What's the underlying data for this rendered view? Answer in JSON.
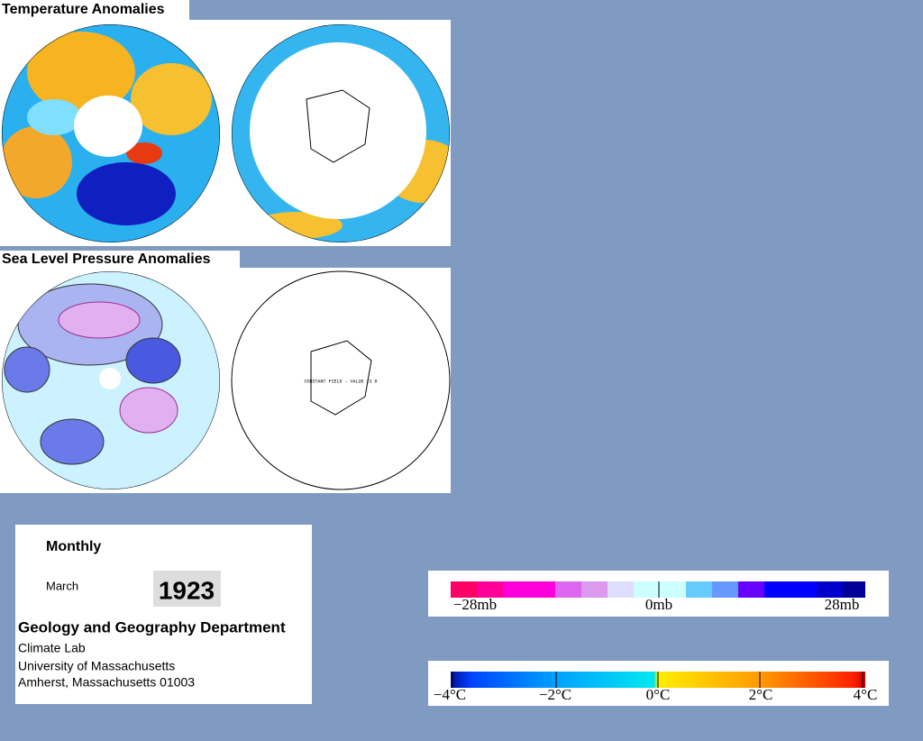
{
  "header": {
    "temperature_title": "Temperature Anomalies",
    "pressure_title": "Sea Level Pressure Anomalies"
  },
  "maps": {
    "constant_field_note": "CONSTANT FIELD - VALUE IS 0"
  },
  "info": {
    "period": "Monthly",
    "month": "March",
    "year": "1923",
    "department": "Geology and Geography Department",
    "lines": [
      "Climate Lab",
      "University of Massachusetts",
      "Amherst, Massachusetts 01003"
    ]
  },
  "pressure_scale": {
    "labels": [
      "−28mb",
      "0mb",
      "28mb"
    ]
  },
  "temperature_scale": {
    "labels": [
      "−4°C",
      "−2°C",
      "0°C",
      "2°C",
      "4°C"
    ]
  }
}
